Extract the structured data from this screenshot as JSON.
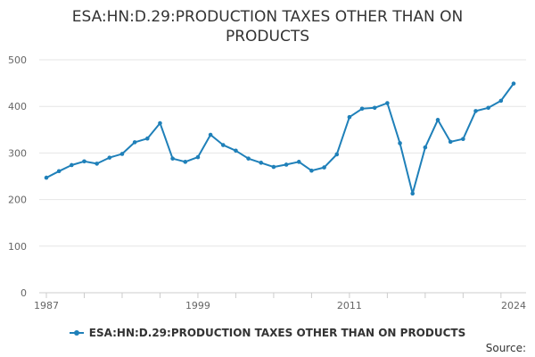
{
  "title_line1": "ESA:HN:D.29:PRODUCTION TAXES OTHER THAN ON",
  "title_line2": "PRODUCTS",
  "source_label": "Source:",
  "colors": {
    "series": "#1f80b9",
    "grid": "#e6e6e6",
    "axis": "#cccccc"
  },
  "chart_data": {
    "type": "line",
    "title": "ESA:HN:D.29:PRODUCTION TAXES OTHER THAN ON PRODUCTS",
    "xlabel": "",
    "ylabel": "",
    "ylim": [
      0,
      500
    ],
    "xlim": [
      1987,
      2024
    ],
    "yticks": [
      0,
      100,
      200,
      300,
      400,
      500
    ],
    "xtick_labels": [
      "1987",
      "1999",
      "2011",
      "2024"
    ],
    "grid": true,
    "legend": "bottom-center",
    "series": [
      {
        "name": "ESA:HN:D.29:PRODUCTION TAXES OTHER THAN ON PRODUCTS",
        "x": [
          1987,
          1988,
          1989,
          1990,
          1991,
          1992,
          1993,
          1994,
          1995,
          1996,
          1997,
          1998,
          1999,
          2000,
          2001,
          2002,
          2003,
          2004,
          2005,
          2006,
          2007,
          2008,
          2009,
          2010,
          2011,
          2012,
          2013,
          2014,
          2015,
          2016,
          2017,
          2018,
          2019,
          2020,
          2021,
          2022,
          2023,
          2024
        ],
        "values": [
          247,
          261,
          274,
          282,
          277,
          290,
          298,
          323,
          331,
          364,
          288,
          281,
          291,
          339,
          317,
          305,
          288,
          279,
          270,
          275,
          281,
          262,
          269,
          297,
          377,
          395,
          397,
          407,
          321,
          213,
          312,
          371,
          324,
          330,
          390,
          397,
          412,
          449
        ]
      }
    ]
  }
}
